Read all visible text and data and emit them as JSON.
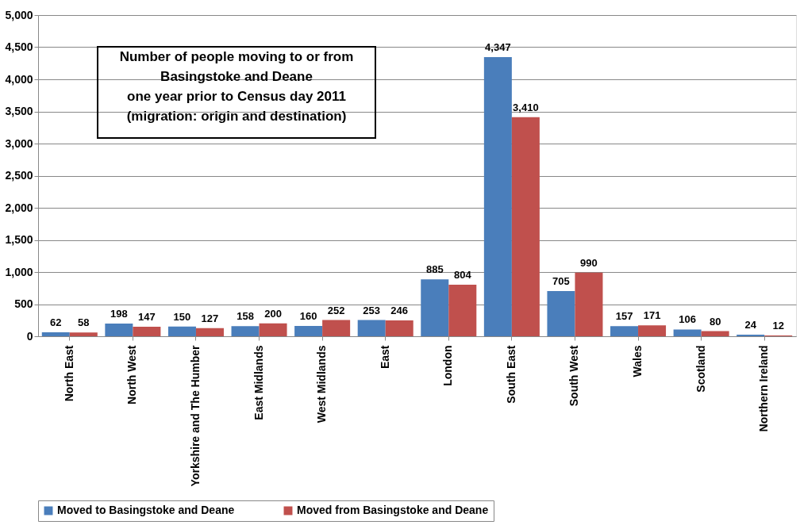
{
  "chart_data": {
    "type": "bar",
    "title": "Number of people moving to or from\nBasingstoke and Deane\none year prior to Census day 2011\n(migration: origin and destination)",
    "categories": [
      "North East",
      "North West",
      "Yorkshire and The Humber",
      "East Midlands",
      "West Midlands",
      "East",
      "London",
      "South East",
      "South West",
      "Wales",
      "Scotland",
      "Northern Ireland"
    ],
    "series": [
      {
        "name": "Moved to Basingstoke and Deane",
        "color": "#4a7ebb",
        "values": [
          62,
          198,
          150,
          158,
          160,
          253,
          885,
          4347,
          705,
          157,
          106,
          24
        ],
        "value_labels": [
          "62",
          "198",
          "150",
          "158",
          "160",
          "253",
          "885",
          "4,347",
          "705",
          "157",
          "106",
          "24"
        ]
      },
      {
        "name": "Moved from Basingstoke and Deane",
        "color": "#c0504d",
        "values": [
          58,
          147,
          127,
          200,
          252,
          246,
          804,
          3410,
          990,
          171,
          80,
          12
        ],
        "value_labels": [
          "58",
          "147",
          "127",
          "200",
          "252",
          "246",
          "804",
          "3,410",
          "990",
          "171",
          "80",
          "12"
        ]
      }
    ],
    "ylim": [
      0,
      5000
    ],
    "yticks": [
      0,
      {
        "value": 500,
        "label": "500"
      },
      {
        "value": 1000,
        "label": "1,000"
      },
      {
        "value": 1500,
        "label": "1,500"
      },
      {
        "value": 2000,
        "label": "2,000"
      },
      {
        "value": 2500,
        "label": "2,500"
      },
      {
        "value": 3000,
        "label": "3,000"
      },
      {
        "value": 3500,
        "label": "3,500"
      },
      {
        "value": 4000,
        "label": "4,000"
      },
      {
        "value": 4500,
        "label": "4,500"
      },
      {
        "value": 5000,
        "label": "5,000"
      }
    ],
    "grid": "y",
    "legend": "bottom"
  }
}
